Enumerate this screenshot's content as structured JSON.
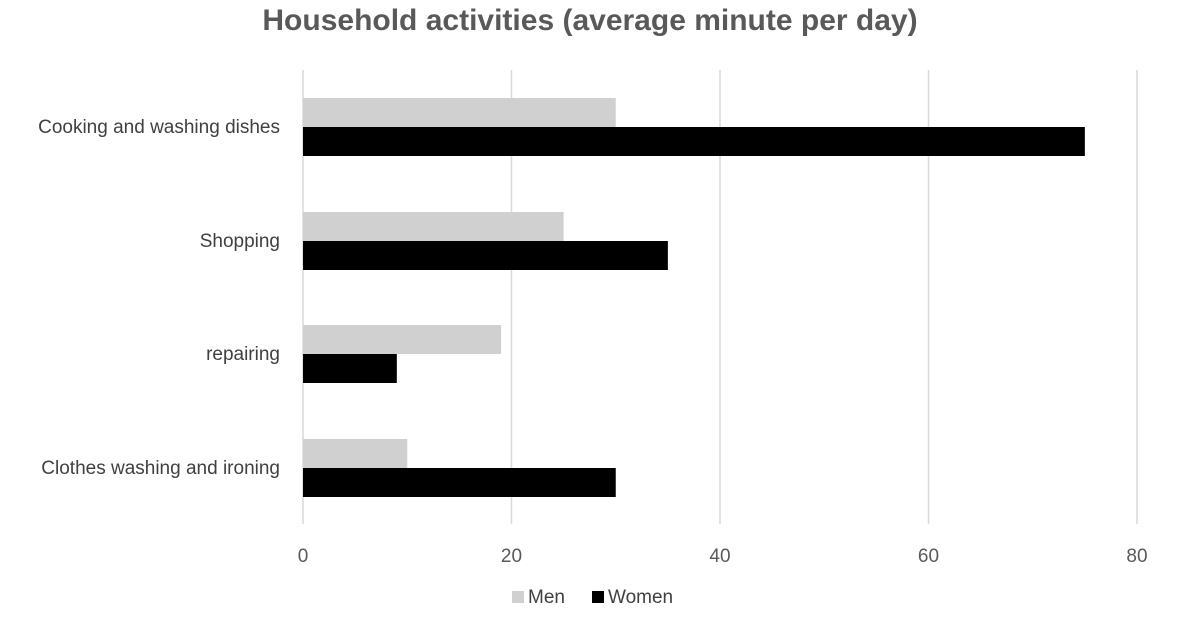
{
  "chart_data": {
    "type": "bar",
    "orientation": "horizontal",
    "title": "Household activities (average minute per day)",
    "xlabel": "",
    "ylabel": "",
    "categories": [
      "Cooking and washing dishes",
      "Shopping",
      "repairing",
      "Clothes washing and ironing"
    ],
    "series": [
      {
        "name": "Men",
        "values": [
          30,
          25,
          19,
          10
        ],
        "color": "#d0d0d0"
      },
      {
        "name": "Women",
        "values": [
          75,
          35,
          9,
          30
        ],
        "color": "#000000"
      }
    ],
    "xlim": [
      0,
      80
    ],
    "ticks": [
      0,
      20,
      40,
      60,
      80
    ],
    "tick_labels": [
      "0",
      "20",
      "40",
      "60",
      "80"
    ],
    "grid": true,
    "legend_position": "bottom",
    "gridline_color": "#d9d9d9"
  }
}
